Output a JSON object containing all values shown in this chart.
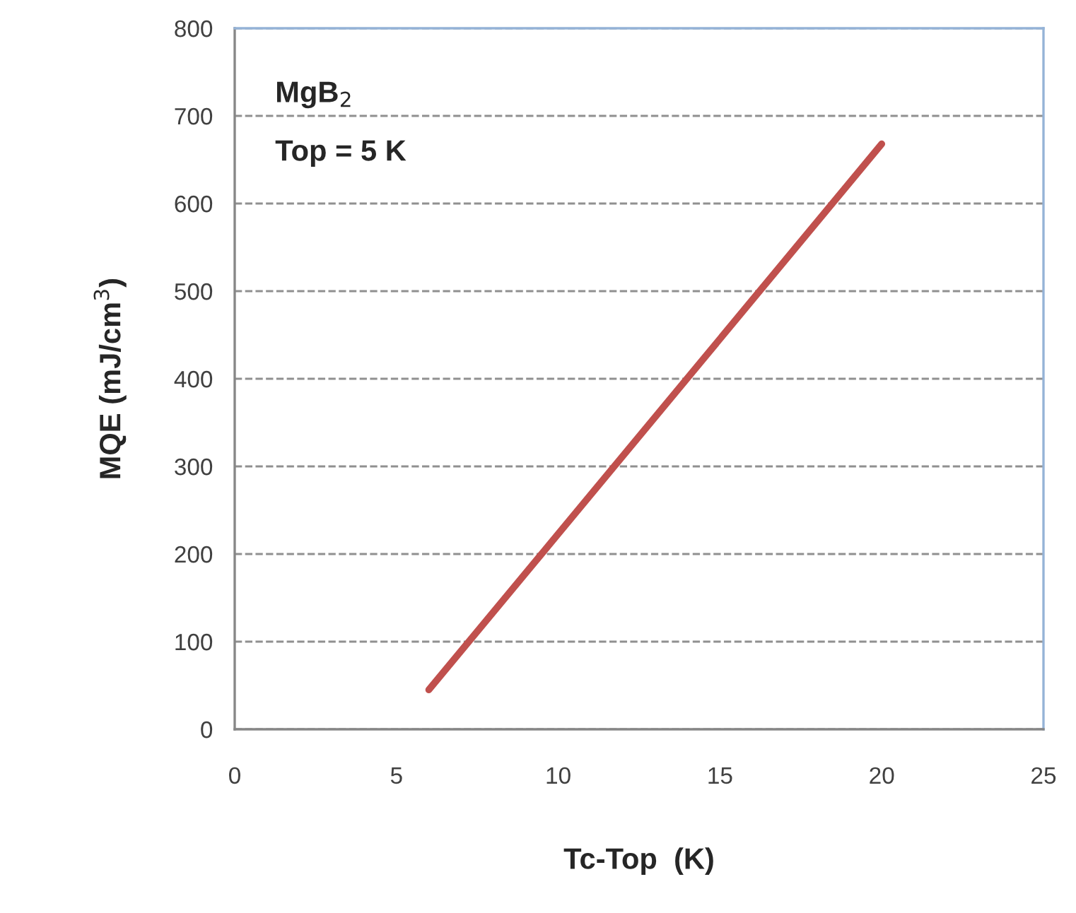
{
  "chart_data": {
    "type": "line",
    "xlabel": "Tc-Top  (K)",
    "ylabel": "MQE (mJ/cm$^{3}$)",
    "x": [
      6,
      20
    ],
    "series": [
      {
        "color": "#c0504d",
        "values": [
          45,
          668
        ]
      }
    ],
    "xlim": [
      0,
      25
    ],
    "xticks": [
      0,
      5,
      10,
      15,
      20,
      25
    ],
    "ylim": [
      0,
      800
    ],
    "yticks": [
      0,
      100,
      200,
      300,
      400,
      500,
      600,
      700,
      800
    ],
    "grid": "y",
    "marker": "none",
    "line_style": "solid",
    "legend": false,
    "annotations": [
      "MgB$_{2}$",
      "Top = 5 K"
    ]
  }
}
